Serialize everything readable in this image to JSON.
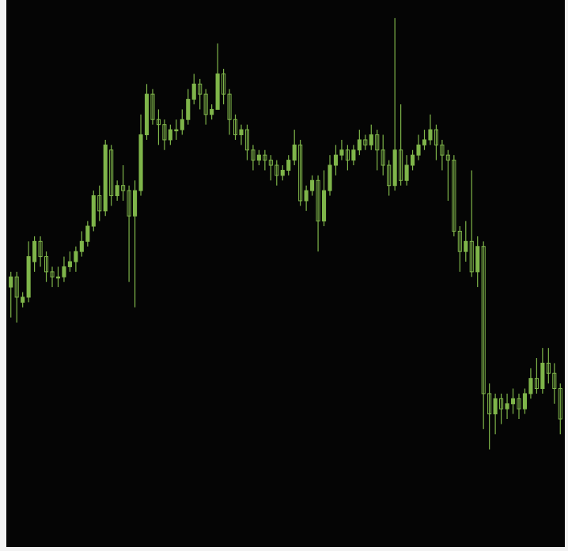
{
  "colors": {
    "background": "#050505",
    "candle": "#7fb54a",
    "frame": "#f3f3f3"
  },
  "chart_data": {
    "type": "candlestick",
    "title": "",
    "xlabel": "",
    "ylabel": "",
    "grid": false,
    "ylim": [
      0,
      100
    ],
    "series": [
      {
        "points": [
          {
            "o": 45,
            "c": 47,
            "h": 48,
            "l": 39
          },
          {
            "o": 47,
            "c": 43,
            "h": 48,
            "l": 38
          },
          {
            "o": 42,
            "c": 43,
            "h": 44,
            "l": 41
          },
          {
            "o": 43,
            "c": 51,
            "h": 54,
            "l": 42
          },
          {
            "o": 50,
            "c": 54,
            "h": 55,
            "l": 48
          },
          {
            "o": 54,
            "c": 51,
            "h": 55,
            "l": 49
          },
          {
            "o": 51,
            "c": 48,
            "h": 52,
            "l": 46
          },
          {
            "o": 48,
            "c": 47,
            "h": 49,
            "l": 45
          },
          {
            "o": 47,
            "c": 47,
            "h": 49,
            "l": 45
          },
          {
            "o": 47,
            "c": 49,
            "h": 51,
            "l": 46
          },
          {
            "o": 49,
            "c": 50,
            "h": 52,
            "l": 48
          },
          {
            "o": 50,
            "c": 52,
            "h": 53,
            "l": 48
          },
          {
            "o": 52,
            "c": 54,
            "h": 56,
            "l": 51
          },
          {
            "o": 54,
            "c": 57,
            "h": 58,
            "l": 53
          },
          {
            "o": 57,
            "c": 63,
            "h": 64,
            "l": 56
          },
          {
            "o": 63,
            "c": 60,
            "h": 65,
            "l": 58
          },
          {
            "o": 60,
            "c": 73,
            "h": 74,
            "l": 59
          },
          {
            "o": 72,
            "c": 63,
            "h": 73,
            "l": 61
          },
          {
            "o": 63,
            "c": 65,
            "h": 66,
            "l": 62
          },
          {
            "o": 65,
            "c": 64,
            "h": 69,
            "l": 62
          },
          {
            "o": 64,
            "c": 59,
            "h": 65,
            "l": 46
          },
          {
            "o": 59,
            "c": 64,
            "h": 66,
            "l": 41
          },
          {
            "o": 64,
            "c": 75,
            "h": 79,
            "l": 63
          },
          {
            "o": 75,
            "c": 83,
            "h": 85,
            "l": 74
          },
          {
            "o": 83,
            "c": 78,
            "h": 84,
            "l": 77
          },
          {
            "o": 78,
            "c": 77,
            "h": 80,
            "l": 73
          },
          {
            "o": 77,
            "c": 74,
            "h": 78,
            "l": 72
          },
          {
            "o": 74,
            "c": 76,
            "h": 77,
            "l": 73
          },
          {
            "o": 76,
            "c": 76,
            "h": 78,
            "l": 74
          },
          {
            "o": 76,
            "c": 78,
            "h": 80,
            "l": 75
          },
          {
            "o": 78,
            "c": 82,
            "h": 84,
            "l": 77
          },
          {
            "o": 82,
            "c": 85,
            "h": 87,
            "l": 81
          },
          {
            "o": 85,
            "c": 83,
            "h": 86,
            "l": 80
          },
          {
            "o": 83,
            "c": 79,
            "h": 84,
            "l": 77
          },
          {
            "o": 79,
            "c": 80,
            "h": 81,
            "l": 78
          },
          {
            "o": 80,
            "c": 87,
            "h": 93,
            "l": 80
          },
          {
            "o": 87,
            "c": 83,
            "h": 88,
            "l": 81
          },
          {
            "o": 83,
            "c": 78,
            "h": 84,
            "l": 75
          },
          {
            "o": 78,
            "c": 75,
            "h": 79,
            "l": 74
          },
          {
            "o": 75,
            "c": 76,
            "h": 77,
            "l": 73
          },
          {
            "o": 76,
            "c": 72,
            "h": 77,
            "l": 70
          },
          {
            "o": 72,
            "c": 70,
            "h": 73,
            "l": 68
          },
          {
            "o": 70,
            "c": 71,
            "h": 72,
            "l": 69
          },
          {
            "o": 71,
            "c": 70,
            "h": 72,
            "l": 68
          },
          {
            "o": 70,
            "c": 69,
            "h": 71,
            "l": 66
          },
          {
            "o": 69,
            "c": 67,
            "h": 70,
            "l": 65
          },
          {
            "o": 67,
            "c": 68,
            "h": 69,
            "l": 66
          },
          {
            "o": 68,
            "c": 70,
            "h": 71,
            "l": 67
          },
          {
            "o": 70,
            "c": 73,
            "h": 76,
            "l": 69
          },
          {
            "o": 73,
            "c": 62,
            "h": 74,
            "l": 61
          },
          {
            "o": 62,
            "c": 64,
            "h": 65,
            "l": 60
          },
          {
            "o": 64,
            "c": 66,
            "h": 67,
            "l": 63
          },
          {
            "o": 66,
            "c": 58,
            "h": 67,
            "l": 52
          },
          {
            "o": 58,
            "c": 64,
            "h": 68,
            "l": 57
          },
          {
            "o": 64,
            "c": 69,
            "h": 71,
            "l": 63
          },
          {
            "o": 69,
            "c": 71,
            "h": 73,
            "l": 67
          },
          {
            "o": 71,
            "c": 72,
            "h": 74,
            "l": 70
          },
          {
            "o": 72,
            "c": 70,
            "h": 73,
            "l": 68
          },
          {
            "o": 70,
            "c": 72,
            "h": 73,
            "l": 69
          },
          {
            "o": 72,
            "c": 74,
            "h": 76,
            "l": 71
          },
          {
            "o": 74,
            "c": 73,
            "h": 75,
            "l": 72
          },
          {
            "o": 73,
            "c": 75,
            "h": 77,
            "l": 72
          },
          {
            "o": 75,
            "c": 72,
            "h": 76,
            "l": 68
          },
          {
            "o": 72,
            "c": 69,
            "h": 75,
            "l": 67
          },
          {
            "o": 69,
            "c": 65,
            "h": 70,
            "l": 63
          },
          {
            "o": 65,
            "c": 72,
            "h": 98,
            "l": 64
          },
          {
            "o": 72,
            "c": 66,
            "h": 81,
            "l": 65
          },
          {
            "o": 66,
            "c": 69,
            "h": 71,
            "l": 65
          },
          {
            "o": 69,
            "c": 71,
            "h": 72,
            "l": 68
          },
          {
            "o": 71,
            "c": 73,
            "h": 75,
            "l": 70
          },
          {
            "o": 73,
            "c": 74,
            "h": 76,
            "l": 72
          },
          {
            "o": 74,
            "c": 76,
            "h": 79,
            "l": 73
          },
          {
            "o": 76,
            "c": 73,
            "h": 77,
            "l": 70
          },
          {
            "o": 73,
            "c": 71,
            "h": 74,
            "l": 68
          },
          {
            "o": 71,
            "c": 70,
            "h": 72,
            "l": 62
          },
          {
            "o": 70,
            "c": 56,
            "h": 71,
            "l": 55
          },
          {
            "o": 56,
            "c": 52,
            "h": 57,
            "l": 48
          },
          {
            "o": 52,
            "c": 54,
            "h": 58,
            "l": 50
          },
          {
            "o": 54,
            "c": 48,
            "h": 68,
            "l": 47
          },
          {
            "o": 48,
            "c": 53,
            "h": 55,
            "l": 45
          },
          {
            "o": 53,
            "c": 24,
            "h": 54,
            "l": 17
          },
          {
            "o": 24,
            "c": 20,
            "h": 26,
            "l": 13
          },
          {
            "o": 20,
            "c": 23,
            "h": 24,
            "l": 16
          },
          {
            "o": 23,
            "c": 21,
            "h": 24,
            "l": 18
          },
          {
            "o": 21,
            "c": 22,
            "h": 24,
            "l": 19
          },
          {
            "o": 22,
            "c": 23,
            "h": 25,
            "l": 20
          },
          {
            "o": 23,
            "c": 21,
            "h": 24,
            "l": 19
          },
          {
            "o": 21,
            "c": 24,
            "h": 25,
            "l": 20
          },
          {
            "o": 24,
            "c": 27,
            "h": 29,
            "l": 23
          },
          {
            "o": 27,
            "c": 25,
            "h": 31,
            "l": 24
          },
          {
            "o": 25,
            "c": 30,
            "h": 33,
            "l": 24
          },
          {
            "o": 30,
            "c": 28,
            "h": 33,
            "l": 26
          },
          {
            "o": 28,
            "c": 25,
            "h": 30,
            "l": 22
          },
          {
            "o": 25,
            "c": 19,
            "h": 26,
            "l": 16
          }
        ]
      }
    ]
  }
}
